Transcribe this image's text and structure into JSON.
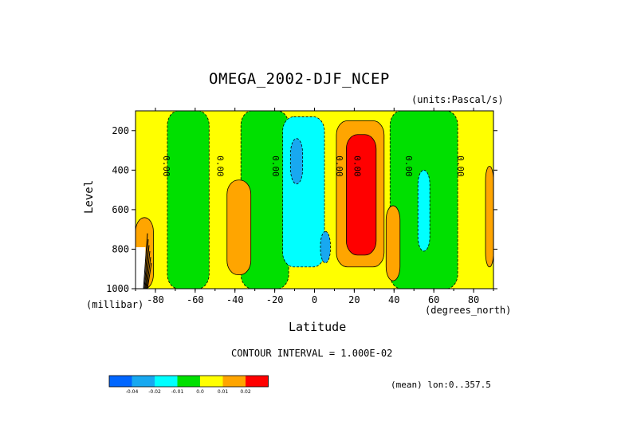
{
  "chart_data": {
    "type": "heatmap",
    "title": "OMEGA_2002-DJF_NCEP",
    "units": "(units:Pascal/s)",
    "ylabel": "Level",
    "ylabel_unit": "(millibar)",
    "xlabel": "Latitude",
    "xlabel_unit": "(degrees_north)",
    "xlim": [
      -90,
      90
    ],
    "ylim": [
      1000,
      100
    ],
    "y_reversed": true,
    "x_ticks": [
      "-80",
      "-60",
      "-40",
      "-20",
      "0",
      "20",
      "40",
      "60",
      "80"
    ],
    "x_tick_values": [
      -80,
      -60,
      -40,
      -20,
      0,
      20,
      40,
      60,
      80
    ],
    "y_ticks": [
      "200",
      "400",
      "600",
      "800",
      "1000"
    ],
    "y_tick_values": [
      200,
      400,
      600,
      800,
      1000
    ],
    "contour_interval_text": "CONTOUR INTERVAL = 1.000E-02",
    "contour_labels": [
      "0.00",
      "0.00",
      "0.00",
      "0.00",
      "0.00",
      "0.00",
      "0.00"
    ],
    "contour_label_lats": [
      -76,
      -49,
      -21,
      11,
      20,
      46,
      72
    ],
    "colorbar": {
      "levels": [
        "-0.04",
        "-0.02",
        "-0.01",
        "0.0",
        "0.01",
        "0.02"
      ],
      "colors": [
        "#0066ff",
        "#18a8f0",
        "#00ffff",
        "#00e000",
        "#ffff00",
        "#ffa500",
        "#ff0000"
      ]
    },
    "regions": [
      {
        "value_class": "negative",
        "color": "#00e000",
        "lat": [
          -74,
          -53
        ],
        "p": [
          100,
          1000
        ]
      },
      {
        "value_class": "negative",
        "color": "#00e000",
        "lat": [
          -37,
          -13
        ],
        "p": [
          100,
          1000
        ]
      },
      {
        "value_class": "negative",
        "color": "#00ffff",
        "lat": [
          -16,
          5
        ],
        "p": [
          130,
          890
        ]
      },
      {
        "value_class": "negative",
        "color": "#18a8f0",
        "lat": [
          -12,
          -6
        ],
        "p": [
          240,
          470
        ]
      },
      {
        "value_class": "negative",
        "color": "#18a8f0",
        "lat": [
          3,
          8
        ],
        "p": [
          710,
          870
        ]
      },
      {
        "value_class": "positive",
        "color": "#ffa500",
        "lat": [
          -44,
          -32
        ],
        "p": [
          450,
          930
        ]
      },
      {
        "value_class": "positive",
        "color": "#ffa500",
        "lat": [
          11,
          35
        ],
        "p": [
          150,
          890
        ]
      },
      {
        "value_class": "positive",
        "color": "#ff0000",
        "lat": [
          16,
          31
        ],
        "p": [
          220,
          830
        ]
      },
      {
        "value_class": "negative",
        "color": "#00e000",
        "lat": [
          38,
          72
        ],
        "p": [
          100,
          1000
        ]
      },
      {
        "value_class": "negative",
        "color": "#00ffff",
        "lat": [
          52,
          58
        ],
        "p": [
          400,
          810
        ]
      },
      {
        "value_class": "positive",
        "color": "#ffa500",
        "lat": [
          36,
          43
        ],
        "p": [
          580,
          960
        ]
      },
      {
        "value_class": "positive",
        "color": "#ffa500",
        "lat": [
          86,
          90
        ],
        "p": [
          380,
          890
        ]
      },
      {
        "value_class": "positive",
        "color": "#ff0000",
        "lat": [
          -88,
          -83
        ],
        "p": [
          780,
          1000
        ]
      },
      {
        "value_class": "positive",
        "color": "#ffa500",
        "lat": [
          -90,
          -81
        ],
        "p": [
          640,
          1000
        ]
      }
    ]
  },
  "footer": {
    "mean_lon": "(mean) lon:0..357.5"
  }
}
